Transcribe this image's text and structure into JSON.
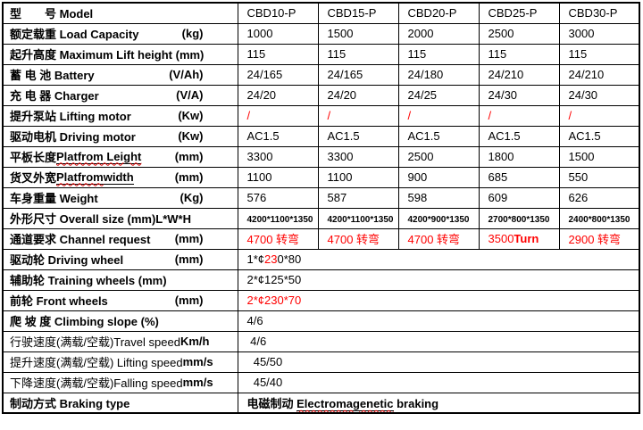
{
  "accent_colors": {
    "text": "#000000",
    "highlight_red": "#ff0000",
    "border": "#000000",
    "background": "#ffffff"
  },
  "table": {
    "models": [
      "CBD10-P",
      "CBD15-P",
      "CBD20-P",
      "CBD25-P",
      "CBD30-P"
    ],
    "rows": [
      {
        "id": "model",
        "label": [
          {
            "t": "型　　号 Model",
            "s": "bold"
          }
        ],
        "unit": "",
        "cells": [
          [
            {
              "t": "CBD10-P",
              "s": ""
            }
          ],
          [
            {
              "t": "CBD15-P",
              "s": ""
            }
          ],
          [
            {
              "t": "CBD20-P",
              "s": ""
            }
          ],
          [
            {
              "t": "CBD25-P",
              "s": ""
            }
          ],
          [
            {
              "t": "CBD30-P",
              "s": ""
            }
          ]
        ]
      },
      {
        "id": "load-capacity",
        "label": [
          {
            "t": "额定载重 Load Capacity",
            "s": "bold"
          }
        ],
        "unit": "(kg)",
        "cells": [
          [
            {
              "t": "1000",
              "s": ""
            }
          ],
          [
            {
              "t": "1500",
              "s": ""
            }
          ],
          [
            {
              "t": "2000",
              "s": ""
            }
          ],
          [
            {
              "t": "2500",
              "s": ""
            }
          ],
          [
            {
              "t": "3000",
              "s": ""
            }
          ]
        ]
      },
      {
        "id": "max-lift-height",
        "label": [
          {
            "t": "起升高度 Maximum Lift height (mm)",
            "s": "bold"
          }
        ],
        "unit": "",
        "cells": [
          [
            {
              "t": "115",
              "s": ""
            }
          ],
          [
            {
              "t": "115",
              "s": ""
            }
          ],
          [
            {
              "t": "115",
              "s": ""
            }
          ],
          [
            {
              "t": "115",
              "s": ""
            }
          ],
          [
            {
              "t": "115",
              "s": ""
            }
          ]
        ]
      },
      {
        "id": "battery",
        "label": [
          {
            "t": "蓄 电 池 Battery",
            "s": "bold"
          }
        ],
        "unit": "(V/Ah)",
        "cells": [
          [
            {
              "t": "24/165",
              "s": ""
            }
          ],
          [
            {
              "t": "24/165",
              "s": ""
            }
          ],
          [
            {
              "t": "24/180",
              "s": ""
            }
          ],
          [
            {
              "t": "24/210",
              "s": ""
            }
          ],
          [
            {
              "t": "24/210",
              "s": ""
            }
          ]
        ]
      },
      {
        "id": "charger",
        "label": [
          {
            "t": "充 电 器 Charger",
            "s": "bold"
          }
        ],
        "unit": "(V/A)",
        "cells": [
          [
            {
              "t": "24/20",
              "s": ""
            }
          ],
          [
            {
              "t": "24/20",
              "s": ""
            }
          ],
          [
            {
              "t": "24/25",
              "s": ""
            }
          ],
          [
            {
              "t": "24/30",
              "s": ""
            }
          ],
          [
            {
              "t": "24/30",
              "s": ""
            }
          ]
        ]
      },
      {
        "id": "lifting-motor",
        "label": [
          {
            "t": "提升泵站 Lifting motor",
            "s": "bold"
          }
        ],
        "unit": "(Kw)",
        "cells": [
          [
            {
              "t": "/",
              "s": "red"
            }
          ],
          [
            {
              "t": "/",
              "s": "red"
            }
          ],
          [
            {
              "t": "/",
              "s": "red"
            }
          ],
          [
            {
              "t": "/",
              "s": "red"
            }
          ],
          [
            {
              "t": "/",
              "s": "red"
            }
          ]
        ]
      },
      {
        "id": "driving-motor",
        "label": [
          {
            "t": "驱动电机 Driving motor",
            "s": "bold"
          }
        ],
        "unit": "(Kw)",
        "cells": [
          [
            {
              "t": "AC1.5",
              "s": ""
            }
          ],
          [
            {
              "t": "AC1.5",
              "s": ""
            }
          ],
          [
            {
              "t": "AC1.5",
              "s": ""
            }
          ],
          [
            {
              "t": "AC1.5",
              "s": ""
            }
          ],
          [
            {
              "t": "AC1.5",
              "s": ""
            }
          ]
        ]
      },
      {
        "id": "platform-length",
        "label": [
          {
            "t": "平板长度 ",
            "s": "bold"
          },
          {
            "t": "Platfrom Leight",
            "s": "bold ul sp"
          }
        ],
        "unit": "(mm)",
        "cells": [
          [
            {
              "t": "3300",
              "s": ""
            }
          ],
          [
            {
              "t": "3300",
              "s": ""
            }
          ],
          [
            {
              "t": "2500",
              "s": ""
            }
          ],
          [
            {
              "t": "1800",
              "s": ""
            }
          ],
          [
            {
              "t": "1500",
              "s": ""
            }
          ]
        ]
      },
      {
        "id": "platform-width",
        "label": [
          {
            "t": "货叉外宽 ",
            "s": "bold"
          },
          {
            "t": "Platfrom",
            "s": "bold ul sp"
          },
          {
            "t": " width",
            "s": "bold ul"
          }
        ],
        "unit": "(mm)",
        "cells": [
          [
            {
              "t": "1100",
              "s": ""
            }
          ],
          [
            {
              "t": "1100",
              "s": ""
            }
          ],
          [
            {
              "t": "900",
              "s": ""
            }
          ],
          [
            {
              "t": "685",
              "s": ""
            }
          ],
          [
            {
              "t": "550",
              "s": ""
            }
          ]
        ]
      },
      {
        "id": "weight",
        "label": [
          {
            "t": "车身重量 Weight",
            "s": "bold"
          }
        ],
        "unit": "(Kg)",
        "cells": [
          [
            {
              "t": "576",
              "s": ""
            }
          ],
          [
            {
              "t": "587",
              "s": ""
            }
          ],
          [
            {
              "t": "598",
              "s": ""
            }
          ],
          [
            {
              "t": "609",
              "s": ""
            }
          ],
          [
            {
              "t": "626",
              "s": ""
            }
          ]
        ]
      },
      {
        "id": "overall-size",
        "label": [
          {
            "t": "外形尺寸 Overall size (mm)L*W*H",
            "s": "bold"
          }
        ],
        "unit": "",
        "cells": [
          [
            {
              "t": "4200*1100*1350",
              "s": "small"
            }
          ],
          [
            {
              "t": "4200*1100*1350",
              "s": "small"
            }
          ],
          [
            {
              "t": "4200*900*1350",
              "s": "small"
            }
          ],
          [
            {
              "t": "2700*800*1350",
              "s": "small"
            }
          ],
          [
            {
              "t": "2400*800*1350",
              "s": "small"
            }
          ]
        ]
      },
      {
        "id": "channel-request",
        "label": [
          {
            "t": "通道要求 Channel request",
            "s": "bold"
          }
        ],
        "unit": "(mm)",
        "cells": [
          [
            {
              "t": "4700 转弯",
              "s": "red"
            }
          ],
          [
            {
              "t": "4700 转弯",
              "s": "red"
            }
          ],
          [
            {
              "t": "4700 转弯",
              "s": "red"
            }
          ],
          [
            {
              "t": "3500",
              "s": "red"
            },
            {
              "t": "Turn",
              "s": "red bold"
            }
          ],
          [
            {
              "t": "2900 转弯",
              "s": "red"
            }
          ]
        ]
      },
      {
        "id": "driving-wheel",
        "label": [
          {
            "t": "驱动轮  Driving wheel",
            "s": "bold"
          }
        ],
        "unit": "(mm)",
        "merged": [
          {
            "t": "1*¢",
            "s": ""
          },
          {
            "t": "23",
            "s": "red"
          },
          {
            "t": "0*80",
            "s": ""
          }
        ]
      },
      {
        "id": "training-wheels",
        "label": [
          {
            "t": "辅助轮 Training wheels (mm)",
            "s": "bold"
          }
        ],
        "unit": "",
        "merged": [
          {
            "t": "2*¢125*50",
            "s": ""
          }
        ]
      },
      {
        "id": "front-wheels",
        "label": [
          {
            "t": "前轮 Front wheels",
            "s": "bold"
          }
        ],
        "unit": "(mm)",
        "merged": [
          {
            "t": "2*¢230*70",
            "s": "red"
          }
        ]
      },
      {
        "id": "climbing-slope",
        "label": [
          {
            "t": "爬 坡 度 Climbing slope (%)",
            "s": "bold"
          }
        ],
        "unit": "",
        "merged": [
          {
            "t": "4/6",
            "s": ""
          }
        ]
      },
      {
        "id": "travel-speed",
        "label": [
          {
            "t": "行驶速度(满载/空载)Travel speed",
            "s": ""
          }
        ],
        "unit": "Km/h",
        "merged": [
          {
            "t": " 4/6",
            "s": ""
          }
        ]
      },
      {
        "id": "lifting-speed",
        "label": [
          {
            "t": "提升速度(满载/空载) Lifting speed ",
            "s": ""
          },
          {
            "t": "mm/s",
            "s": "bold"
          }
        ],
        "unit": "",
        "merged": [
          {
            "t": "  45/50",
            "s": ""
          }
        ]
      },
      {
        "id": "falling-speed",
        "label": [
          {
            "t": "下降速度(满载/空载)Falling speed ",
            "s": ""
          },
          {
            "t": "mm/s",
            "s": "bold"
          }
        ],
        "unit": "",
        "merged": [
          {
            "t": "  45/40",
            "s": ""
          }
        ]
      },
      {
        "id": "braking-type",
        "label": [
          {
            "t": "制动方式 Braking type",
            "s": "bold"
          }
        ],
        "unit": "",
        "merged": [
          {
            "t": "电磁制动 ",
            "s": "bold"
          },
          {
            "t": "Electromagenetic",
            "s": "bold ul sp"
          },
          {
            "t": " braking",
            "s": "bold"
          }
        ]
      }
    ]
  }
}
